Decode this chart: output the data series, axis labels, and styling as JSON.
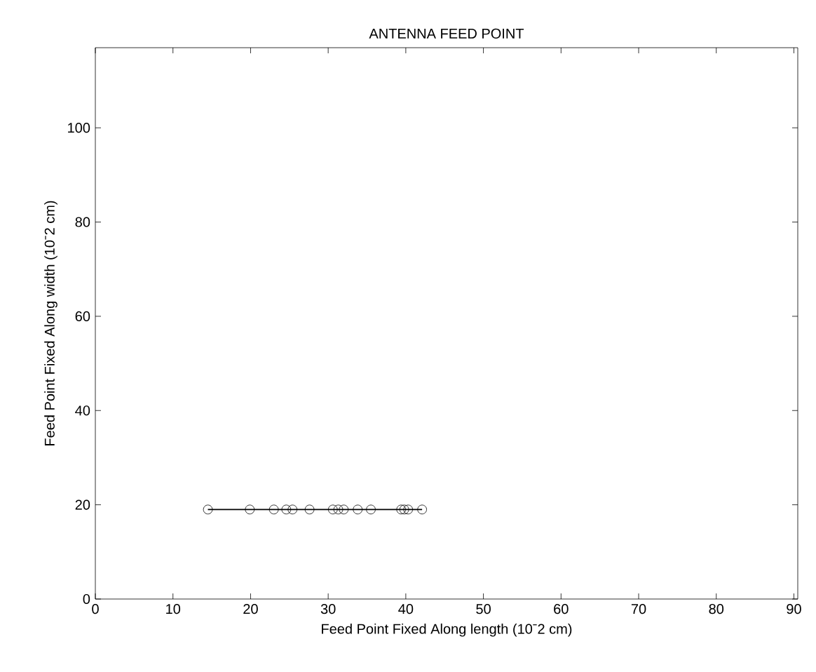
{
  "chart_data": {
    "type": "line",
    "title": "ANTENNA FEED POINT",
    "xlabel": "Feed Point Fixed Along length (10ˉ2 cm)",
    "ylabel": "Feed Point Fixed Along width (10ˉ2 cm)",
    "series": [
      {
        "color": "#000000",
        "x": [
          14.5,
          19.9,
          23.0,
          24.6,
          25.4,
          27.6,
          30.6,
          31.3,
          32.0,
          33.8,
          35.5,
          39.4,
          39.8,
          40.3,
          42.1
        ],
        "values": [
          19,
          19,
          19,
          19,
          19,
          19,
          19,
          19,
          19,
          19,
          19,
          19,
          19,
          19,
          19
        ]
      }
    ],
    "xlim": [
      0,
      90.5
    ],
    "xticks": [
      0,
      10,
      20,
      30,
      40,
      50,
      60,
      70,
      80,
      90
    ],
    "ylim": [
      0,
      117
    ],
    "yticks": [
      0,
      20,
      40,
      60,
      80,
      100
    ],
    "marker": "circle",
    "line_style": "solid",
    "grid": false
  }
}
